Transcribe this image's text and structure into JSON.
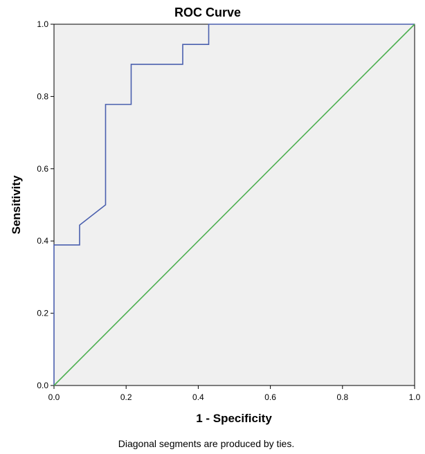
{
  "chart_data": {
    "type": "line",
    "title": "ROC Curve",
    "xlabel": "1 - Specificity",
    "ylabel": "Sensitivity",
    "xlim": [
      0.0,
      1.0
    ],
    "ylim": [
      0.0,
      1.0
    ],
    "xticks": [
      "0.0",
      "0.2",
      "0.4",
      "0.6",
      "0.8",
      "1.0"
    ],
    "yticks": [
      "0.0",
      "0.2",
      "0.4",
      "0.6",
      "0.8",
      "1.0"
    ],
    "grid": false,
    "background_color": "#f0f0f0",
    "series": [
      {
        "color": "#4a5fae",
        "points": [
          [
            0.0,
            0.0
          ],
          [
            0.0,
            0.389
          ],
          [
            0.071,
            0.389
          ],
          [
            0.071,
            0.444
          ],
          [
            0.143,
            0.5
          ],
          [
            0.143,
            0.778
          ],
          [
            0.214,
            0.778
          ],
          [
            0.214,
            0.889
          ],
          [
            0.357,
            0.889
          ],
          [
            0.357,
            0.944
          ],
          [
            0.429,
            0.944
          ],
          [
            0.429,
            1.0
          ],
          [
            1.0,
            1.0
          ]
        ]
      },
      {
        "color": "#4caf50",
        "points": [
          [
            0.0,
            0.0
          ],
          [
            1.0,
            1.0
          ]
        ]
      }
    ],
    "footnote": "Diagonal segments are produced by ties."
  }
}
